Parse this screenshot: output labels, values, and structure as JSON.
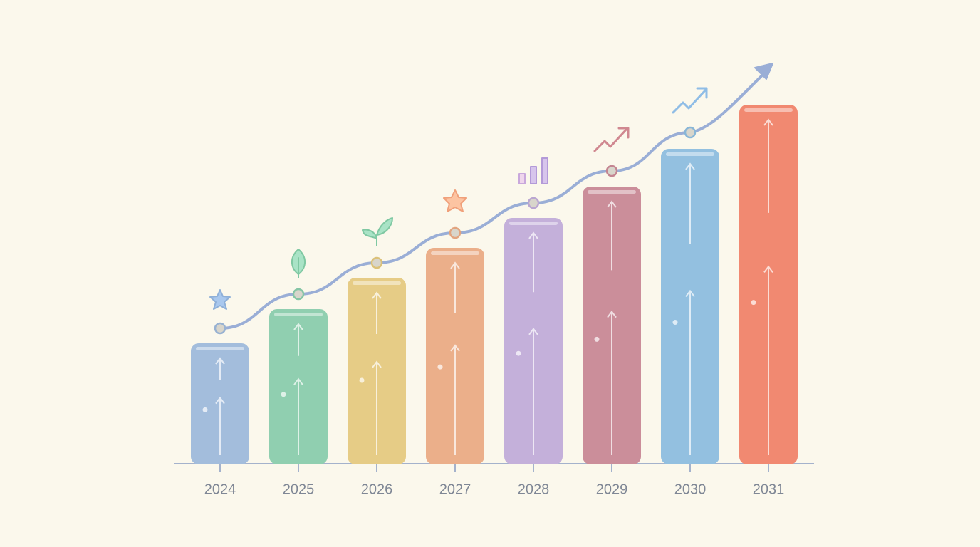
{
  "chart_data": {
    "type": "bar",
    "categories": [
      "2024",
      "2025",
      "2026",
      "2027",
      "2028",
      "2029",
      "2030",
      "2031"
    ],
    "values": [
      168,
      216,
      260,
      302,
      344,
      388,
      441,
      503
    ],
    "colors": [
      "#b9d1ee",
      "#a9e3c6",
      "#fbe3a2",
      "#fcc4a2",
      "#d7c5ec",
      "#d9a0ab",
      "#aad4f2",
      "#fc9c86"
    ],
    "trend_values": [
      190,
      238,
      282,
      324,
      366,
      411,
      465,
      null
    ],
    "trend_color": "#9aaed6",
    "ylim": [
      0,
      520
    ]
  }
}
